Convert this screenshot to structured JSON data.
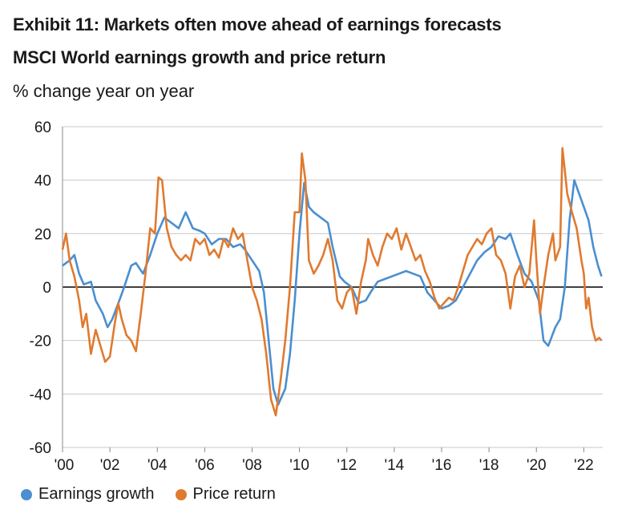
{
  "header": {
    "title": "Exhibit 11: Markets often move ahead of earnings forecasts",
    "subtitle": "MSCI World earnings growth and price return",
    "unit": "% change year on year"
  },
  "colors": {
    "earnings": "#4a8fd0",
    "price": "#e07a2f",
    "grid": "#c8c8c8",
    "zero": "#000000"
  },
  "chart_data": {
    "type": "line",
    "ylim": [
      -60,
      60
    ],
    "xlim": [
      2000,
      2022.8
    ],
    "yticks": [
      60,
      40,
      20,
      0,
      -20,
      -40,
      -60
    ],
    "ytick_labels": [
      "60",
      "40",
      "20",
      "0",
      "-20",
      "-40",
      "-60"
    ],
    "xticks": [
      2000,
      2002,
      2004,
      2006,
      2008,
      2010,
      2012,
      2014,
      2016,
      2018,
      2020,
      2022
    ],
    "xtick_labels": [
      "'00",
      "'02",
      "'04",
      "'06",
      "'08",
      "'10",
      "'12",
      "'14",
      "'16",
      "'18",
      "'20",
      "'22"
    ],
    "grid": "horizontal",
    "legend_position": "bottom-left",
    "series": [
      {
        "name": "Earnings growth",
        "color_key": "earnings",
        "points": [
          [
            2000.0,
            8
          ],
          [
            2000.3,
            10
          ],
          [
            2000.5,
            12
          ],
          [
            2000.7,
            5
          ],
          [
            2000.9,
            1
          ],
          [
            2001.2,
            2
          ],
          [
            2001.4,
            -5
          ],
          [
            2001.7,
            -10
          ],
          [
            2001.9,
            -15
          ],
          [
            2002.1,
            -12
          ],
          [
            2002.4,
            -5
          ],
          [
            2002.6,
            0
          ],
          [
            2002.9,
            8
          ],
          [
            2003.1,
            9
          ],
          [
            2003.4,
            5
          ],
          [
            2003.7,
            12
          ],
          [
            2004.0,
            20
          ],
          [
            2004.3,
            26
          ],
          [
            2004.6,
            24
          ],
          [
            2004.9,
            22
          ],
          [
            2005.2,
            28
          ],
          [
            2005.5,
            22
          ],
          [
            2005.8,
            21
          ],
          [
            2006.0,
            20
          ],
          [
            2006.3,
            16
          ],
          [
            2006.6,
            18
          ],
          [
            2006.9,
            18
          ],
          [
            2007.2,
            15
          ],
          [
            2007.5,
            16
          ],
          [
            2007.7,
            14
          ],
          [
            2008.0,
            10
          ],
          [
            2008.3,
            6
          ],
          [
            2008.5,
            -2
          ],
          [
            2008.7,
            -20
          ],
          [
            2008.9,
            -38
          ],
          [
            2009.1,
            -44
          ],
          [
            2009.4,
            -38
          ],
          [
            2009.6,
            -25
          ],
          [
            2009.8,
            -5
          ],
          [
            2010.0,
            20
          ],
          [
            2010.2,
            39
          ],
          [
            2010.4,
            30
          ],
          [
            2010.6,
            28
          ],
          [
            2010.9,
            26
          ],
          [
            2011.2,
            24
          ],
          [
            2011.4,
            15
          ],
          [
            2011.7,
            4
          ],
          [
            2011.9,
            2
          ],
          [
            2012.2,
            0
          ],
          [
            2012.5,
            -6
          ],
          [
            2012.8,
            -5
          ],
          [
            2013.0,
            -2
          ],
          [
            2013.3,
            2
          ],
          [
            2013.6,
            3
          ],
          [
            2013.9,
            4
          ],
          [
            2014.2,
            5
          ],
          [
            2014.5,
            6
          ],
          [
            2014.8,
            5
          ],
          [
            2015.1,
            4
          ],
          [
            2015.4,
            -2
          ],
          [
            2015.7,
            -5
          ],
          [
            2016.0,
            -8
          ],
          [
            2016.3,
            -7
          ],
          [
            2016.6,
            -5
          ],
          [
            2016.9,
            0
          ],
          [
            2017.2,
            5
          ],
          [
            2017.5,
            10
          ],
          [
            2017.8,
            13
          ],
          [
            2018.1,
            15
          ],
          [
            2018.4,
            19
          ],
          [
            2018.7,
            18
          ],
          [
            2018.9,
            20
          ],
          [
            2019.2,
            12
          ],
          [
            2019.5,
            5
          ],
          [
            2019.8,
            2
          ],
          [
            2020.1,
            -5
          ],
          [
            2020.3,
            -20
          ],
          [
            2020.5,
            -22
          ],
          [
            2020.8,
            -15
          ],
          [
            2021.0,
            -12
          ],
          [
            2021.2,
            0
          ],
          [
            2021.4,
            25
          ],
          [
            2021.6,
            40
          ],
          [
            2021.8,
            35
          ],
          [
            2022.0,
            30
          ],
          [
            2022.2,
            25
          ],
          [
            2022.4,
            15
          ],
          [
            2022.6,
            8
          ],
          [
            2022.75,
            4
          ]
        ]
      },
      {
        "name": "Price return",
        "color_key": "price",
        "points": [
          [
            2000.0,
            14
          ],
          [
            2000.15,
            20
          ],
          [
            2000.3,
            10
          ],
          [
            2000.5,
            4
          ],
          [
            2000.7,
            -5
          ],
          [
            2000.85,
            -15
          ],
          [
            2001.0,
            -10
          ],
          [
            2001.2,
            -25
          ],
          [
            2001.4,
            -16
          ],
          [
            2001.6,
            -22
          ],
          [
            2001.8,
            -28
          ],
          [
            2002.0,
            -26
          ],
          [
            2002.2,
            -14
          ],
          [
            2002.35,
            -6
          ],
          [
            2002.5,
            -12
          ],
          [
            2002.7,
            -18
          ],
          [
            2002.9,
            -20
          ],
          [
            2003.1,
            -24
          ],
          [
            2003.3,
            -10
          ],
          [
            2003.5,
            5
          ],
          [
            2003.7,
            22
          ],
          [
            2003.9,
            20
          ],
          [
            2004.05,
            41
          ],
          [
            2004.2,
            40
          ],
          [
            2004.4,
            22
          ],
          [
            2004.6,
            15
          ],
          [
            2004.8,
            12
          ],
          [
            2005.0,
            10
          ],
          [
            2005.2,
            12
          ],
          [
            2005.4,
            10
          ],
          [
            2005.6,
            18
          ],
          [
            2005.8,
            16
          ],
          [
            2006.0,
            18
          ],
          [
            2006.2,
            12
          ],
          [
            2006.4,
            14
          ],
          [
            2006.6,
            11
          ],
          [
            2006.8,
            18
          ],
          [
            2007.0,
            15
          ],
          [
            2007.2,
            22
          ],
          [
            2007.4,
            18
          ],
          [
            2007.6,
            20
          ],
          [
            2007.8,
            10
          ],
          [
            2008.0,
            0
          ],
          [
            2008.2,
            -5
          ],
          [
            2008.4,
            -12
          ],
          [
            2008.6,
            -25
          ],
          [
            2008.8,
            -42
          ],
          [
            2009.0,
            -48
          ],
          [
            2009.2,
            -35
          ],
          [
            2009.4,
            -20
          ],
          [
            2009.6,
            0
          ],
          [
            2009.8,
            28
          ],
          [
            2010.0,
            28
          ],
          [
            2010.1,
            50
          ],
          [
            2010.25,
            40
          ],
          [
            2010.4,
            10
          ],
          [
            2010.6,
            5
          ],
          [
            2010.8,
            8
          ],
          [
            2011.0,
            12
          ],
          [
            2011.2,
            18
          ],
          [
            2011.4,
            10
          ],
          [
            2011.6,
            -5
          ],
          [
            2011.8,
            -8
          ],
          [
            2012.0,
            -2
          ],
          [
            2012.2,
            0
          ],
          [
            2012.4,
            -10
          ],
          [
            2012.6,
            2
          ],
          [
            2012.8,
            10
          ],
          [
            2012.9,
            18
          ],
          [
            2013.1,
            12
          ],
          [
            2013.3,
            8
          ],
          [
            2013.5,
            15
          ],
          [
            2013.7,
            20
          ],
          [
            2013.9,
            18
          ],
          [
            2014.1,
            22
          ],
          [
            2014.3,
            14
          ],
          [
            2014.5,
            20
          ],
          [
            2014.7,
            15
          ],
          [
            2014.9,
            10
          ],
          [
            2015.1,
            12
          ],
          [
            2015.3,
            6
          ],
          [
            2015.5,
            2
          ],
          [
            2015.7,
            -4
          ],
          [
            2015.9,
            -8
          ],
          [
            2016.1,
            -6
          ],
          [
            2016.3,
            -4
          ],
          [
            2016.5,
            -5
          ],
          [
            2016.7,
            0
          ],
          [
            2016.9,
            6
          ],
          [
            2017.1,
            12
          ],
          [
            2017.3,
            15
          ],
          [
            2017.5,
            18
          ],
          [
            2017.7,
            16
          ],
          [
            2017.9,
            20
          ],
          [
            2018.1,
            22
          ],
          [
            2018.3,
            12
          ],
          [
            2018.5,
            10
          ],
          [
            2018.7,
            5
          ],
          [
            2018.9,
            -8
          ],
          [
            2019.1,
            4
          ],
          [
            2019.3,
            8
          ],
          [
            2019.5,
            0
          ],
          [
            2019.7,
            5
          ],
          [
            2019.9,
            25
          ],
          [
            2020.0,
            10
          ],
          [
            2020.15,
            -10
          ],
          [
            2020.3,
            0
          ],
          [
            2020.5,
            12
          ],
          [
            2020.7,
            20
          ],
          [
            2020.8,
            10
          ],
          [
            2021.0,
            15
          ],
          [
            2021.1,
            52
          ],
          [
            2021.3,
            35
          ],
          [
            2021.5,
            28
          ],
          [
            2021.7,
            22
          ],
          [
            2021.9,
            10
          ],
          [
            2022.0,
            5
          ],
          [
            2022.1,
            -8
          ],
          [
            2022.2,
            -4
          ],
          [
            2022.35,
            -15
          ],
          [
            2022.5,
            -20
          ],
          [
            2022.65,
            -19
          ],
          [
            2022.75,
            -20
          ]
        ]
      }
    ]
  },
  "legend": {
    "earnings_label": "Earnings growth",
    "price_label": "Price return"
  }
}
